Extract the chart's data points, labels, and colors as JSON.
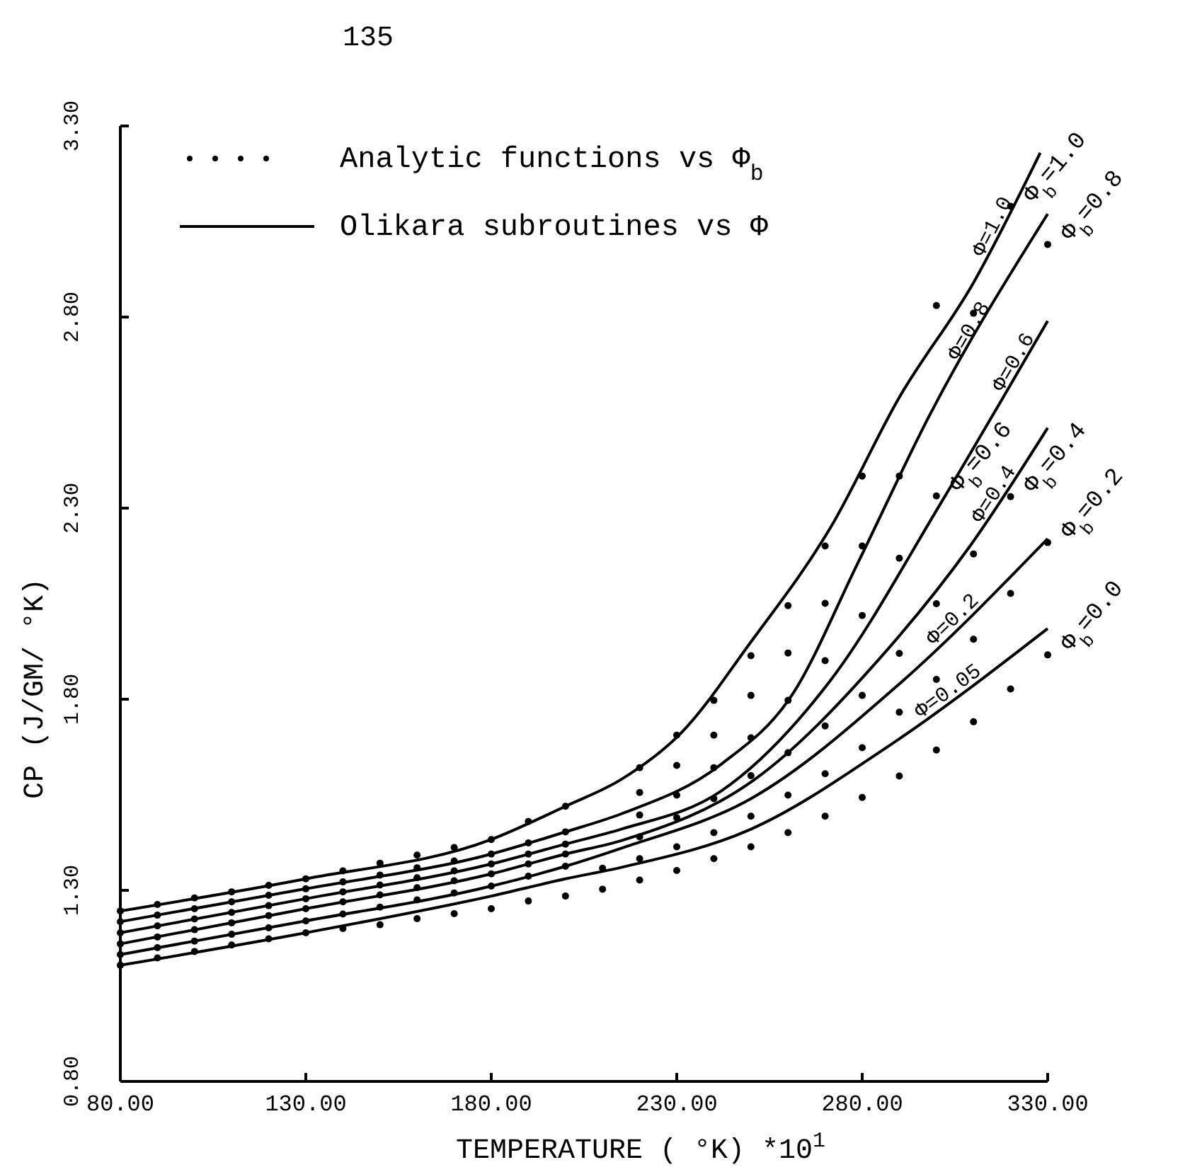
{
  "chart_data": {
    "type": "line",
    "xlabel": "TEMPERATURE ( °K) *10$^{1}$",
    "ylabel": "CP (J/GM/ °K)",
    "xlim": [
      80,
      330
    ],
    "ylim": [
      0.8,
      3.3
    ],
    "xticks": [
      {
        "value": 80,
        "label": "80.00"
      },
      {
        "value": 130,
        "label": "130.00"
      },
      {
        "value": 180,
        "label": "180.00"
      },
      {
        "value": 230,
        "label": "230.00"
      },
      {
        "value": 280,
        "label": "280.00"
      },
      {
        "value": 330,
        "label": "330.00"
      }
    ],
    "yticks": [
      {
        "value": 0.8,
        "label": "0.80"
      },
      {
        "value": 1.3,
        "label": "1.30"
      },
      {
        "value": 1.8,
        "label": "1.80"
      },
      {
        "value": 2.3,
        "label": "2.30"
      },
      {
        "value": 2.8,
        "label": "2.80"
      },
      {
        "value": 3.3,
        "label": "3.30"
      }
    ],
    "annotations": [
      "135",
      "Analytic functions vs Φ$_{b}$",
      "Olikara subroutines vs Φ"
    ],
    "line_style": "solid",
    "series": [
      {
        "name": "Φ=1.0",
        "color": "#000000",
        "x": [
          80,
          130,
          180,
          200,
          215,
          231,
          250,
          271.5,
          290,
          310,
          328
        ],
        "values": [
          1.246,
          1.33,
          1.433,
          1.52,
          1.59,
          1.71,
          1.95,
          2.25,
          2.59,
          2.89,
          3.23
        ]
      },
      {
        "name": "Φ=0.8",
        "color": "#000000",
        "x": [
          80,
          130,
          180,
          200,
          215,
          242,
          261,
          279,
          298,
          330
        ],
        "values": [
          1.218,
          1.304,
          1.395,
          1.453,
          1.5,
          1.63,
          1.81,
          2.16,
          2.54,
          3.07
        ]
      },
      {
        "name": "Φ=0.6",
        "color": "#000000",
        "x": [
          80,
          130,
          180,
          200,
          215,
          242,
          271.5,
          301,
          318,
          330
        ],
        "values": [
          1.189,
          1.278,
          1.369,
          1.421,
          1.46,
          1.56,
          1.85,
          2.31,
          2.59,
          2.79
        ]
      },
      {
        "name": "Φ=0.4",
        "color": "#000000",
        "x": [
          80,
          130,
          180,
          200,
          215,
          251,
          285,
          309,
          330
        ],
        "values": [
          1.16,
          1.252,
          1.343,
          1.395,
          1.43,
          1.59,
          1.91,
          2.2,
          2.51
        ]
      },
      {
        "name": "Φ=0.2",
        "color": "#000000",
        "x": [
          80,
          130,
          180,
          200,
          215,
          250,
          290,
          330
        ],
        "values": [
          1.132,
          1.22,
          1.311,
          1.363,
          1.41,
          1.54,
          1.84,
          2.22
        ]
      },
      {
        "name": "Φ=0.05",
        "color": "#000000",
        "x": [
          80,
          130,
          180,
          200,
          215,
          250,
          287.5,
          330
        ],
        "values": [
          1.104,
          1.189,
          1.285,
          1.33,
          1.36,
          1.46,
          1.68,
          1.985
        ]
      },
      {
        "name": "Φ$_{b}$=1.0",
        "type": "scatter",
        "marker": "circle",
        "color": "#000000",
        "x": [
          80,
          90,
          100,
          110,
          120,
          130,
          140,
          150,
          160,
          170,
          180,
          190,
          200,
          220,
          230,
          240,
          250,
          260,
          270,
          280,
          300,
          320
        ],
        "values": [
          1.246,
          1.263,
          1.28,
          1.296,
          1.313,
          1.33,
          1.351,
          1.371,
          1.392,
          1.412,
          1.433,
          1.48,
          1.52,
          1.621,
          1.706,
          1.797,
          1.914,
          2.045,
          2.201,
          2.384,
          2.83,
          3.09
        ]
      },
      {
        "name": "Φ$_{b}$=0.8",
        "type": "scatter",
        "marker": "circle",
        "color": "#000000",
        "x": [
          80,
          90,
          100,
          110,
          120,
          130,
          140,
          150,
          160,
          170,
          180,
          190,
          200,
          220,
          230,
          240,
          250,
          260,
          270,
          280,
          290,
          310,
          330
        ],
        "values": [
          1.218,
          1.235,
          1.252,
          1.27,
          1.287,
          1.304,
          1.322,
          1.34,
          1.359,
          1.377,
          1.395,
          1.424,
          1.453,
          1.556,
          1.627,
          1.706,
          1.81,
          1.921,
          2.051,
          2.201,
          2.384,
          2.81,
          2.99
        ]
      },
      {
        "name": "Φ$_{b}$=0.6",
        "type": "scatter",
        "marker": "circle",
        "color": "#000000",
        "x": [
          80,
          90,
          100,
          110,
          120,
          130,
          140,
          150,
          160,
          170,
          180,
          190,
          200,
          220,
          230,
          240,
          250,
          260,
          270,
          280,
          290,
          300
        ],
        "values": [
          1.189,
          1.207,
          1.225,
          1.242,
          1.26,
          1.278,
          1.296,
          1.314,
          1.333,
          1.351,
          1.369,
          1.395,
          1.421,
          1.497,
          1.549,
          1.621,
          1.699,
          1.797,
          1.901,
          2.019,
          2.169,
          2.332
        ]
      },
      {
        "name": "Φ$_{b}$=0.4",
        "type": "scatter",
        "marker": "circle",
        "color": "#000000",
        "x": [
          80,
          90,
          100,
          110,
          120,
          130,
          140,
          150,
          160,
          170,
          180,
          190,
          200,
          220,
          230,
          240,
          250,
          260,
          270,
          280,
          290,
          300,
          310,
          320
        ],
        "values": [
          1.16,
          1.178,
          1.197,
          1.215,
          1.234,
          1.252,
          1.27,
          1.288,
          1.307,
          1.325,
          1.343,
          1.369,
          1.395,
          1.44,
          1.49,
          1.54,
          1.6,
          1.66,
          1.73,
          1.81,
          1.92,
          2.05,
          2.18,
          2.33
        ]
      },
      {
        "name": "Φ$_{b}$=0.2",
        "type": "scatter",
        "marker": "circle",
        "color": "#000000",
        "x": [
          80,
          90,
          100,
          110,
          120,
          130,
          140,
          150,
          160,
          170,
          180,
          190,
          200,
          210,
          220,
          230,
          240,
          250,
          260,
          270,
          280,
          290,
          300,
          310,
          320,
          330
        ],
        "values": [
          1.132,
          1.15,
          1.167,
          1.185,
          1.202,
          1.22,
          1.238,
          1.256,
          1.275,
          1.293,
          1.311,
          1.337,
          1.363,
          1.358,
          1.383,
          1.414,
          1.451,
          1.494,
          1.549,
          1.605,
          1.673,
          1.766,
          1.852,
          1.957,
          2.077,
          2.21
        ]
      },
      {
        "name": "Φ$_{b}$=0.0",
        "type": "scatter",
        "marker": "circle",
        "color": "#000000",
        "x": [
          80,
          90,
          100,
          110,
          120,
          130,
          140,
          150,
          160,
          170,
          180,
          190,
          200,
          210,
          220,
          230,
          240,
          250,
          260,
          270,
          280,
          290,
          300,
          310,
          320,
          330
        ],
        "values": [
          1.104,
          1.123,
          1.14,
          1.157,
          1.173,
          1.189,
          1.2,
          1.21,
          1.226,
          1.239,
          1.252,
          1.272,
          1.285,
          1.303,
          1.327,
          1.352,
          1.383,
          1.414,
          1.451,
          1.494,
          1.543,
          1.599,
          1.667,
          1.741,
          1.827,
          1.916
        ]
      }
    ]
  }
}
